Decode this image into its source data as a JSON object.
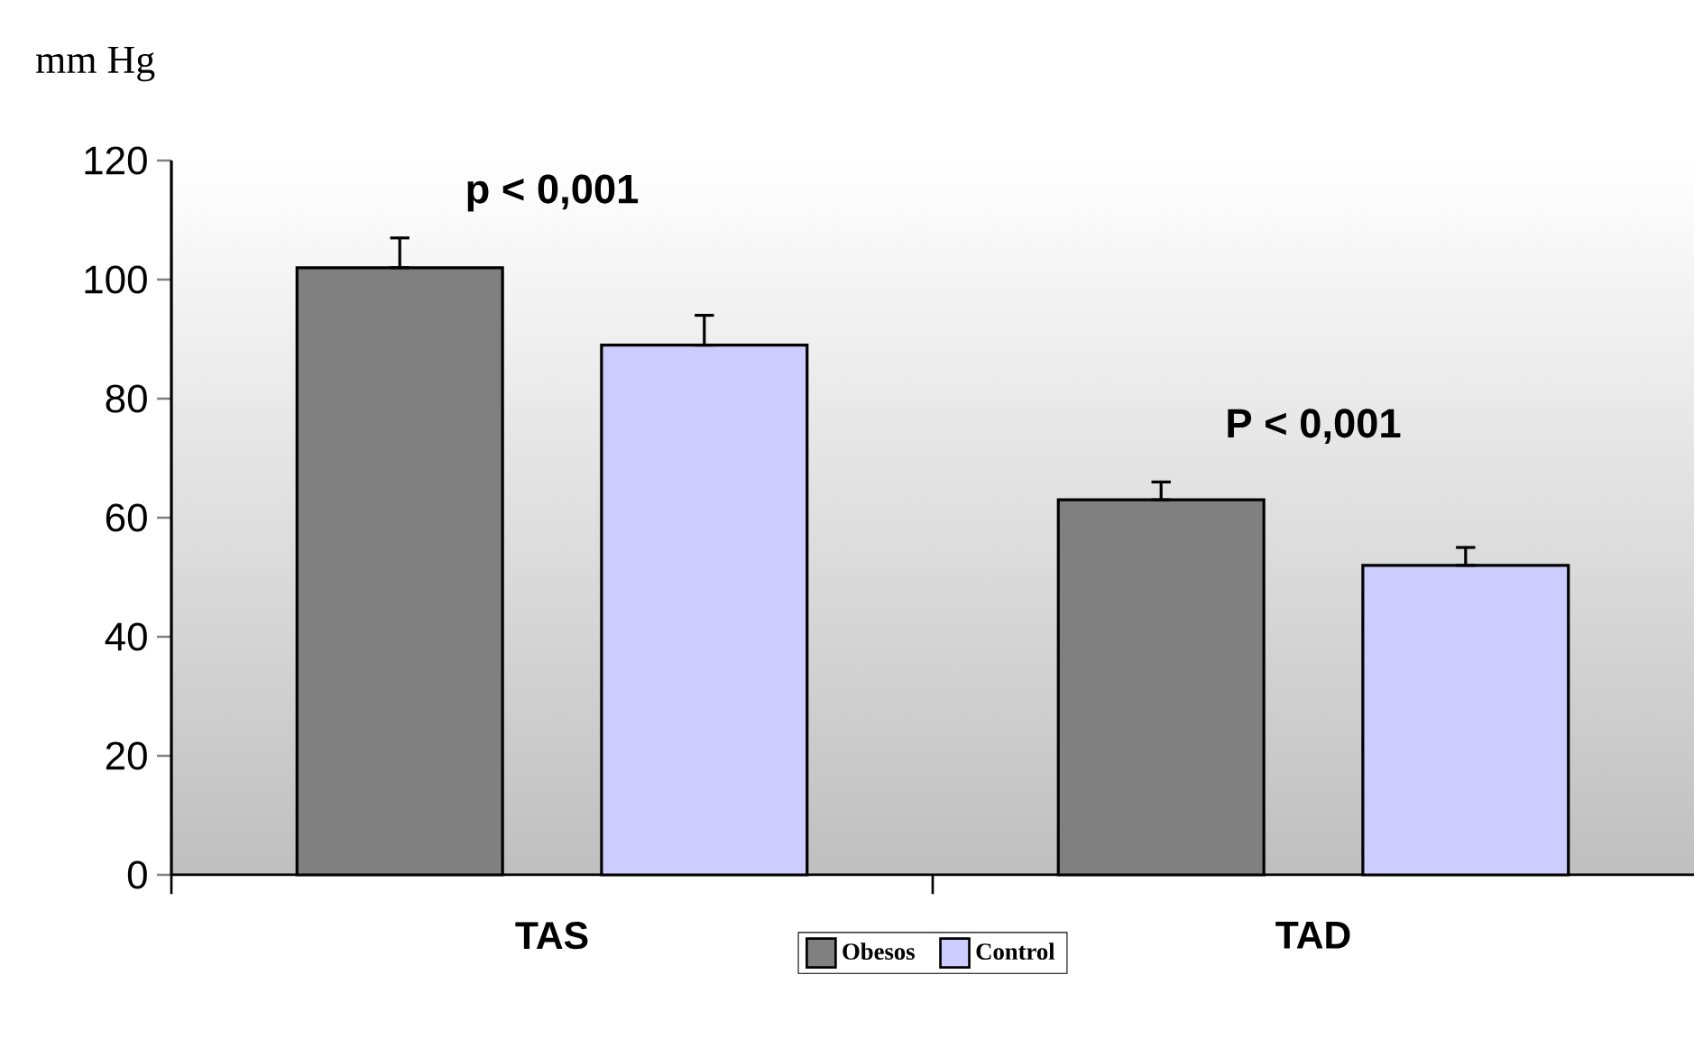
{
  "chart_data": {
    "type": "bar",
    "ylabel": "mm Hg",
    "categories": [
      "TAS",
      "TAD"
    ],
    "series": [
      {
        "name": "Obesos",
        "color": "#808080",
        "values": [
          102,
          63
        ],
        "errors": [
          [
            102,
            107
          ],
          [
            63,
            66
          ]
        ]
      },
      {
        "name": "Control",
        "color": "#ccccff",
        "values": [
          89,
          52
        ],
        "errors": [
          [
            89,
            94
          ],
          [
            52,
            55
          ]
        ]
      }
    ],
    "ylim": [
      0,
      120
    ],
    "yticks": [
      0,
      20,
      40,
      60,
      80,
      100,
      120
    ],
    "legend": "bottom",
    "grid": false,
    "annotations": [
      "p < 0,001",
      "P < 0,001"
    ]
  }
}
